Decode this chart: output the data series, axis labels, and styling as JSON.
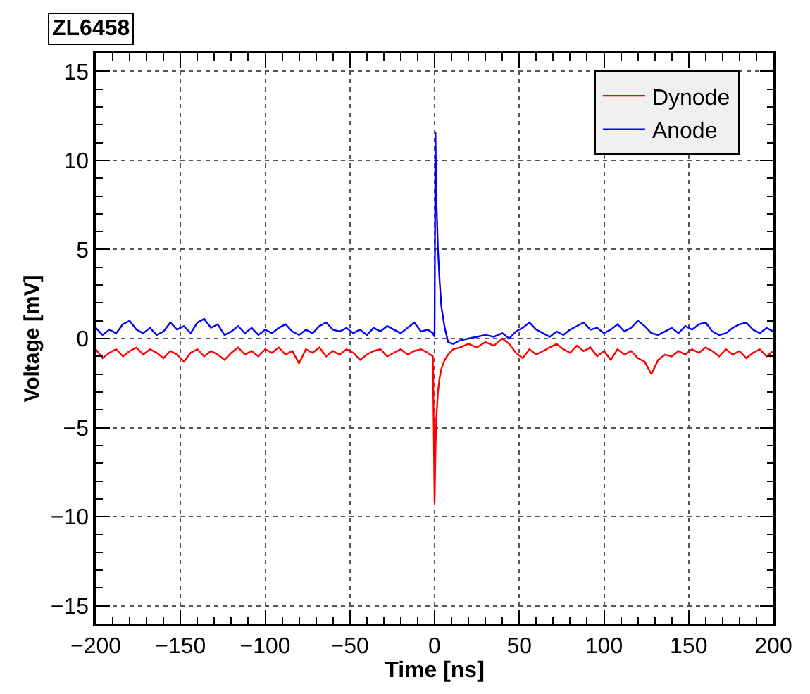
{
  "chart_data": {
    "type": "line",
    "title": "ZL6458",
    "xlabel": "Time [ns]",
    "ylabel": "Voltage [mV]",
    "xlim": [
      -200,
      200
    ],
    "xticks": [
      -200,
      -150,
      -100,
      -50,
      0,
      50,
      100,
      150,
      200
    ],
    "ylim": [
      -16,
      16
    ],
    "yticks": [
      -15,
      -10,
      -5,
      0,
      5,
      10,
      15
    ],
    "grid": true,
    "legend": "top right",
    "line_style": "solid",
    "marker": "none",
    "series": [
      {
        "name": "Dynode",
        "color": "#ff0000",
        "x": [
          -200,
          -196,
          -192,
          -188,
          -184,
          -180,
          -176,
          -172,
          -168,
          -164,
          -160,
          -156,
          -152,
          -148,
          -144,
          -140,
          -136,
          -132,
          -128,
          -124,
          -120,
          -116,
          -112,
          -108,
          -104,
          -100,
          -96,
          -92,
          -88,
          -84,
          -80,
          -76,
          -72,
          -68,
          -64,
          -60,
          -56,
          -52,
          -48,
          -44,
          -40,
          -36,
          -32,
          -28,
          -24,
          -20,
          -16,
          -12,
          -8,
          -4,
          -1,
          0,
          0.5,
          1,
          2,
          3,
          4,
          6,
          8,
          11,
          15,
          20,
          25,
          30,
          35,
          40,
          44,
          48,
          52,
          56,
          60,
          64,
          68,
          72,
          76,
          80,
          84,
          88,
          92,
          96,
          100,
          104,
          108,
          112,
          116,
          120,
          124,
          128,
          132,
          136,
          140,
          144,
          148,
          152,
          156,
          160,
          164,
          168,
          172,
          176,
          180,
          184,
          188,
          192,
          196,
          200
        ],
        "values": [
          -0.6,
          -1.1,
          -0.8,
          -0.6,
          -1.0,
          -0.7,
          -0.5,
          -0.9,
          -0.6,
          -0.8,
          -1.1,
          -0.7,
          -0.9,
          -1.3,
          -0.8,
          -0.6,
          -1.0,
          -0.7,
          -0.9,
          -1.2,
          -0.8,
          -0.5,
          -0.9,
          -0.7,
          -1.0,
          -0.6,
          -0.8,
          -0.5,
          -0.9,
          -0.7,
          -1.4,
          -0.6,
          -0.8,
          -0.5,
          -1.0,
          -0.7,
          -0.9,
          -0.6,
          -0.8,
          -1.2,
          -0.9,
          -0.7,
          -0.6,
          -1.0,
          -0.8,
          -0.6,
          -0.9,
          -0.7,
          -0.6,
          -0.8,
          -1.0,
          -9.2,
          -6.5,
          -4.5,
          -3.0,
          -2.2,
          -1.7,
          -1.2,
          -0.9,
          -0.6,
          -0.5,
          -0.3,
          -0.5,
          -0.2,
          -0.4,
          0.0,
          -0.3,
          -0.8,
          -1.1,
          -0.6,
          -0.9,
          -0.7,
          -0.5,
          -0.3,
          -0.6,
          -0.8,
          -0.4,
          -0.7,
          -0.5,
          -1.0,
          -0.7,
          -1.2,
          -0.6,
          -0.9,
          -0.7,
          -1.1,
          -1.3,
          -2.0,
          -1.2,
          -0.9,
          -1.0,
          -0.7,
          -0.9,
          -0.6,
          -0.8,
          -0.5,
          -0.7,
          -1.0,
          -0.6,
          -0.9,
          -0.7,
          -1.1,
          -0.8,
          -0.6,
          -1.0,
          -0.7
        ]
      },
      {
        "name": "Anode",
        "color": "#0000ff",
        "x": [
          -200,
          -196,
          -192,
          -188,
          -184,
          -180,
          -176,
          -172,
          -168,
          -164,
          -160,
          -156,
          -152,
          -148,
          -144,
          -140,
          -136,
          -132,
          -128,
          -124,
          -120,
          -116,
          -112,
          -108,
          -104,
          -100,
          -96,
          -92,
          -88,
          -84,
          -80,
          -76,
          -72,
          -68,
          -64,
          -60,
          -56,
          -52,
          -48,
          -44,
          -40,
          -36,
          -32,
          -28,
          -24,
          -20,
          -16,
          -12,
          -8,
          -4,
          -1,
          0,
          0.5,
          1,
          2,
          3,
          4,
          6,
          8,
          11,
          15,
          20,
          25,
          30,
          35,
          40,
          44,
          48,
          52,
          56,
          60,
          64,
          68,
          72,
          76,
          80,
          84,
          88,
          92,
          96,
          100,
          104,
          108,
          112,
          116,
          120,
          124,
          128,
          132,
          136,
          140,
          144,
          148,
          152,
          156,
          160,
          164,
          168,
          172,
          176,
          180,
          184,
          188,
          192,
          196,
          200
        ],
        "values": [
          0.6,
          0.2,
          0.5,
          0.3,
          0.8,
          1.0,
          0.5,
          0.3,
          0.6,
          0.2,
          0.4,
          0.9,
          0.5,
          0.7,
          0.3,
          0.9,
          1.1,
          0.6,
          0.8,
          0.2,
          0.4,
          0.7,
          0.3,
          0.6,
          0.2,
          0.5,
          0.3,
          0.6,
          0.8,
          0.4,
          0.2,
          0.5,
          0.3,
          0.7,
          0.9,
          0.5,
          0.4,
          0.6,
          0.3,
          0.5,
          0.2,
          0.6,
          0.4,
          0.7,
          0.5,
          0.3,
          0.6,
          0.9,
          0.4,
          0.5,
          0.3,
          0.1,
          11.6,
          8.0,
          5.0,
          3.2,
          1.8,
          0.6,
          -0.2,
          -0.3,
          -0.1,
          0.0,
          0.1,
          0.2,
          0.1,
          0.3,
          0.0,
          0.4,
          0.6,
          0.9,
          0.5,
          0.3,
          0.1,
          0.4,
          0.2,
          0.5,
          0.7,
          0.9,
          0.5,
          0.6,
          0.3,
          0.5,
          0.8,
          0.4,
          0.6,
          1.0,
          0.7,
          0.3,
          0.2,
          0.4,
          0.6,
          0.3,
          0.7,
          0.5,
          0.8,
          0.9,
          0.4,
          0.2,
          0.3,
          0.6,
          0.8,
          0.9,
          0.5,
          0.3,
          0.6,
          0.4
        ]
      }
    ]
  }
}
